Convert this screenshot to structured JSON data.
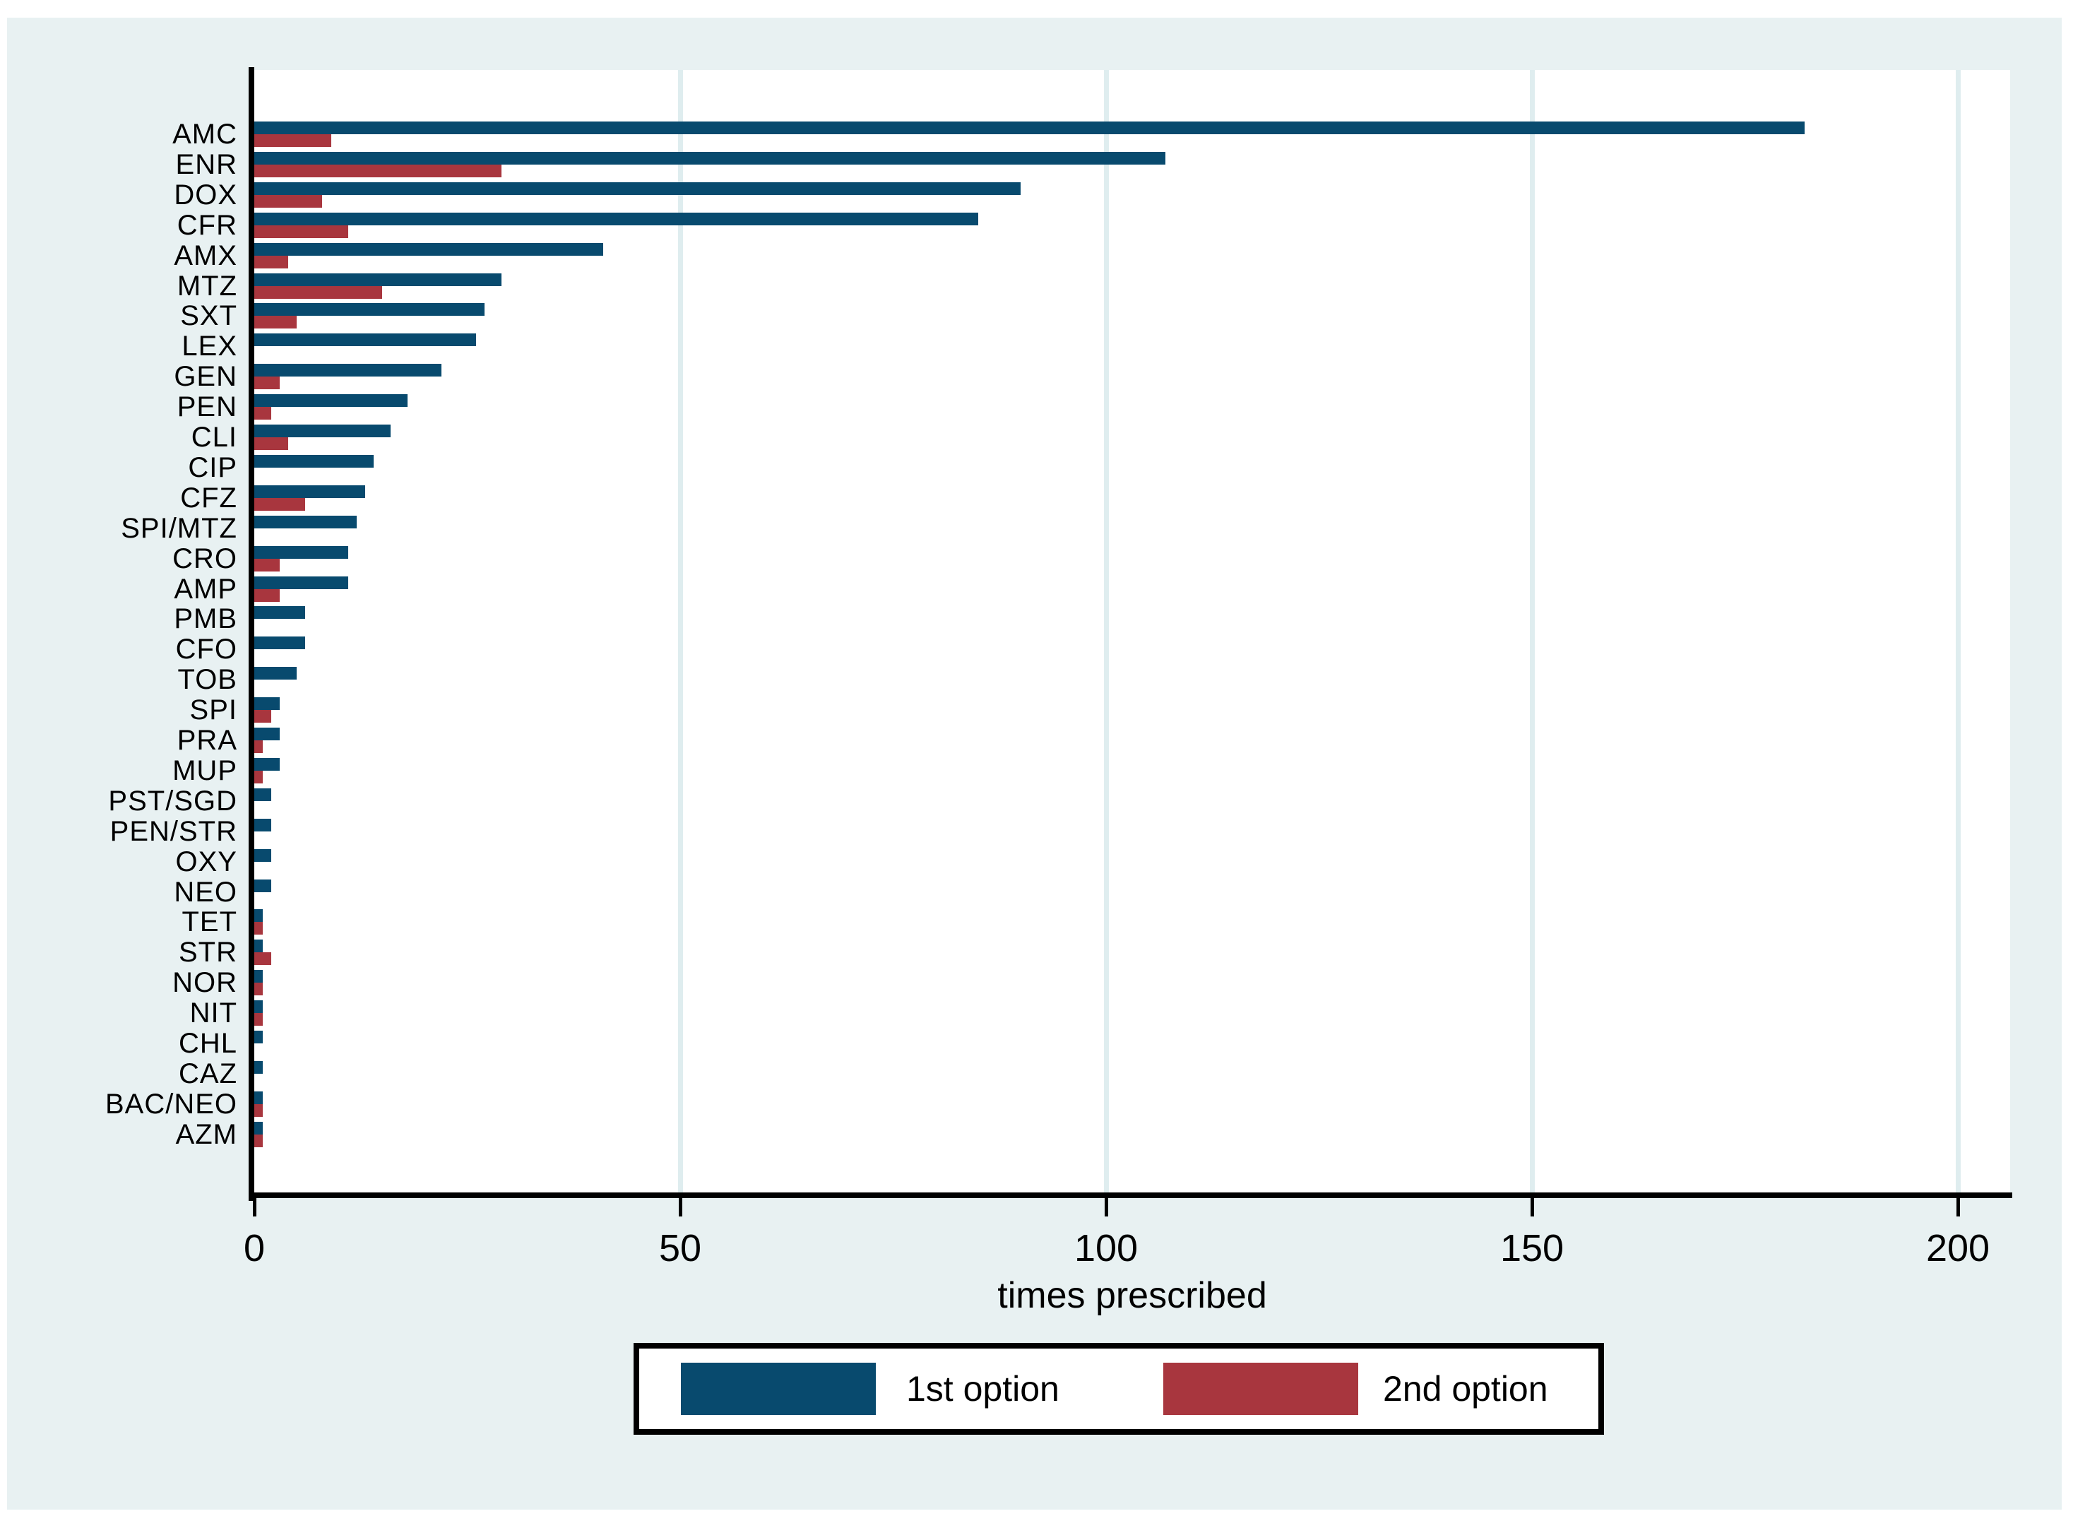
{
  "figure": {
    "title": "",
    "x_axis_title": "times prescribed",
    "background_color": "#e8f1f2",
    "plot_background_color": "#ffffff",
    "gridline_color": "#dfedef",
    "axis_color": "#000000"
  },
  "legend": {
    "entries": [
      {
        "label": "1st option",
        "color": "#084a6e"
      },
      {
        "label": "2nd option",
        "color": "#a8363e"
      }
    ]
  },
  "chart_data": {
    "type": "bar",
    "orientation": "horizontal",
    "title": "",
    "xlabel": "times prescribed",
    "ylabel": "",
    "xlim": [
      0,
      206
    ],
    "x_ticks": [
      0,
      50,
      100,
      150,
      200
    ],
    "grid": "vertical gridlines at 50, 100, 150, 200",
    "legend_position": "bottom-center",
    "categories": [
      "AMC",
      "ENR",
      "DOX",
      "CFR",
      "AMX",
      "MTZ",
      "SXT",
      "LEX",
      "GEN",
      "PEN",
      "CLI",
      "CIP",
      "CFZ",
      "SPI/MTZ",
      "CRO",
      "AMP",
      "PMB",
      "CFO",
      "TOB",
      "SPI",
      "PRA",
      "MUP",
      "PST/SGD",
      "PEN/STR",
      "OXY",
      "NEO",
      "TET",
      "STR",
      "NOR",
      "NIT",
      "CHL",
      "CAZ",
      "BAC/NEO",
      "AZM"
    ],
    "series": [
      {
        "name": "1st option",
        "color": "#084a6e",
        "values": [
          182,
          107,
          90,
          85,
          41,
          29,
          27,
          26,
          22,
          18,
          16,
          14,
          13,
          12,
          11,
          11,
          6,
          6,
          5,
          3,
          3,
          3,
          2,
          2,
          2,
          2,
          1,
          1,
          1,
          1,
          1,
          1,
          1,
          1
        ]
      },
      {
        "name": "2nd option",
        "color": "#a8363e",
        "values": [
          9,
          29,
          8,
          11,
          4,
          15,
          5,
          0,
          3,
          2,
          4,
          0,
          6,
          0,
          3,
          3,
          0,
          0,
          0,
          2,
          1,
          1,
          0,
          0,
          0,
          0,
          1,
          2,
          1,
          1,
          0,
          0,
          1,
          1
        ]
      }
    ]
  }
}
